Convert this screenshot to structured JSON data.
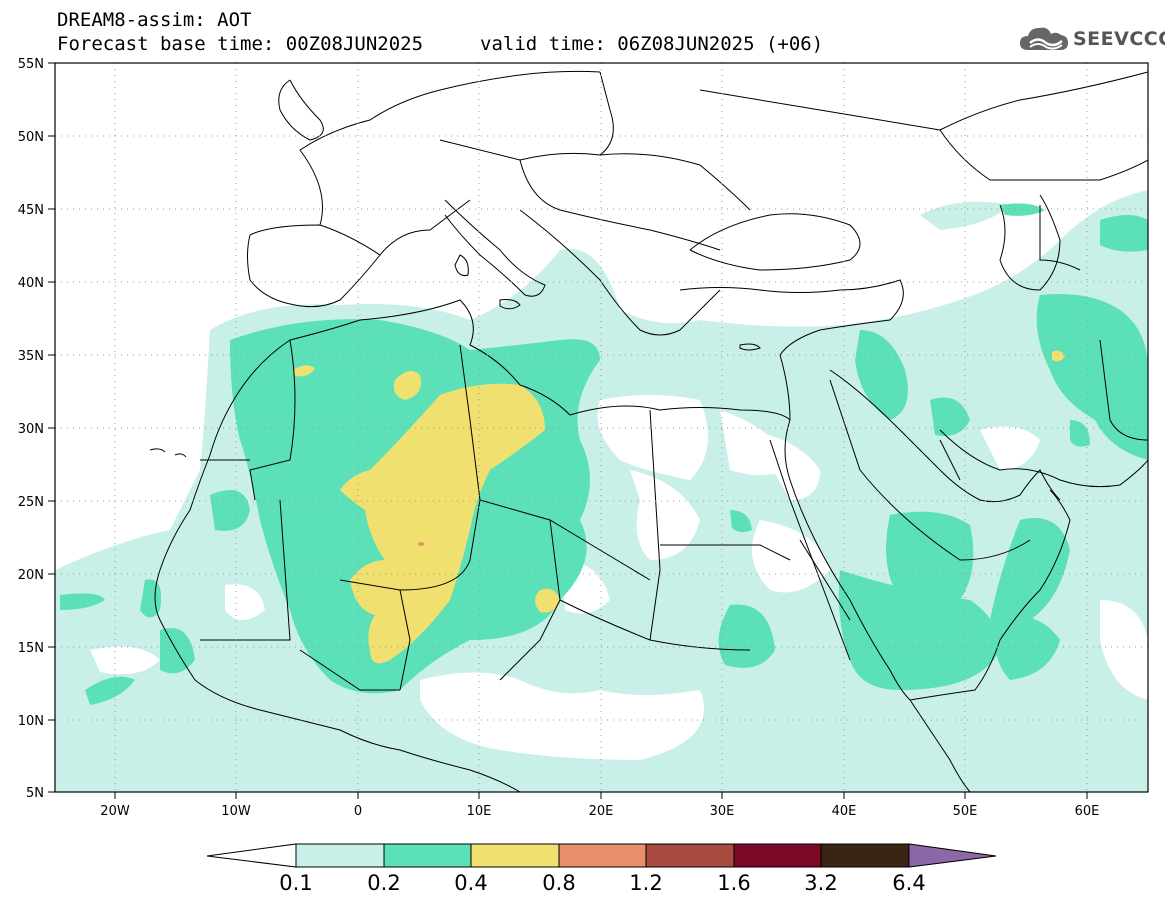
{
  "header": {
    "title_line1": "DREAM8-assim: AOT",
    "title_line2": "Forecast base time: 00Z08JUN2025",
    "valid_time": "valid time: 06Z08JUN2025 (+06)"
  },
  "logo": {
    "text": "SEEVCCC",
    "icon": "cloud-icon"
  },
  "map": {
    "region": "North Africa, Europe, Middle East",
    "lon_range": [
      -25,
      65
    ],
    "lat_range": [
      5,
      55
    ],
    "lat_labels": [
      "55N",
      "50N",
      "45N",
      "40N",
      "35N",
      "30N",
      "25N",
      "20N",
      "15N",
      "10N",
      "5N"
    ],
    "lon_labels": [
      "20W",
      "10W",
      "0",
      "10E",
      "20E",
      "30E",
      "40E",
      "50E",
      "60E"
    ],
    "gridlines": "dotted"
  },
  "colorbar": {
    "labels": [
      "0.1",
      "0.2",
      "0.4",
      "0.8",
      "1.2",
      "1.6",
      "3.2",
      "6.4"
    ],
    "colors": [
      "#ffffff",
      "#c8f0e8",
      "#5ce0b8",
      "#f0e070",
      "#e8906a",
      "#a84a40",
      "#7a0a28",
      "#3a2414",
      "#8c68a8"
    ]
  },
  "colors": {
    "level_0_1": "#c8f0e8",
    "level_0_2": "#5ce0b8",
    "level_0_4": "#f0e070",
    "level_0_8": "#e8906a"
  }
}
